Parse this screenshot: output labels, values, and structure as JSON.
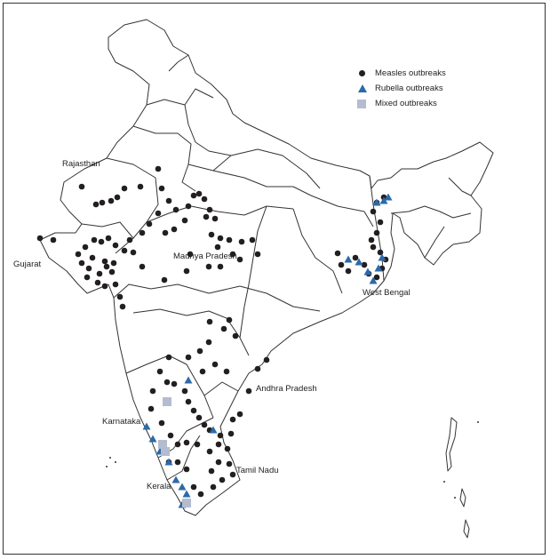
{
  "legend": {
    "items": [
      {
        "label": "Measles outbreaks",
        "symbol": "circle",
        "color": "#231f20"
      },
      {
        "label": "Rubella outbreaks",
        "symbol": "triangle",
        "color": "#2b6aa9"
      },
      {
        "label": "Mixed outbreaks",
        "symbol": "square",
        "color": "#b4bccf"
      }
    ]
  },
  "regions": {
    "rajasthan": "Rajasthan",
    "gujarat": "Gujarat",
    "madhya_pradesh": "Madhya Pradesh",
    "west_bengal": "West Bengal",
    "andhra_pradesh": "Andhra Pradesh",
    "karnataka": "Karnataka",
    "tamil_nadu": "Tamil Nadu",
    "kerala": "Kerala"
  },
  "colors": {
    "measles": "#231f20",
    "rubella": "#2b6aa9",
    "mixed": "#b4bccf",
    "border": "#333333"
  }
}
